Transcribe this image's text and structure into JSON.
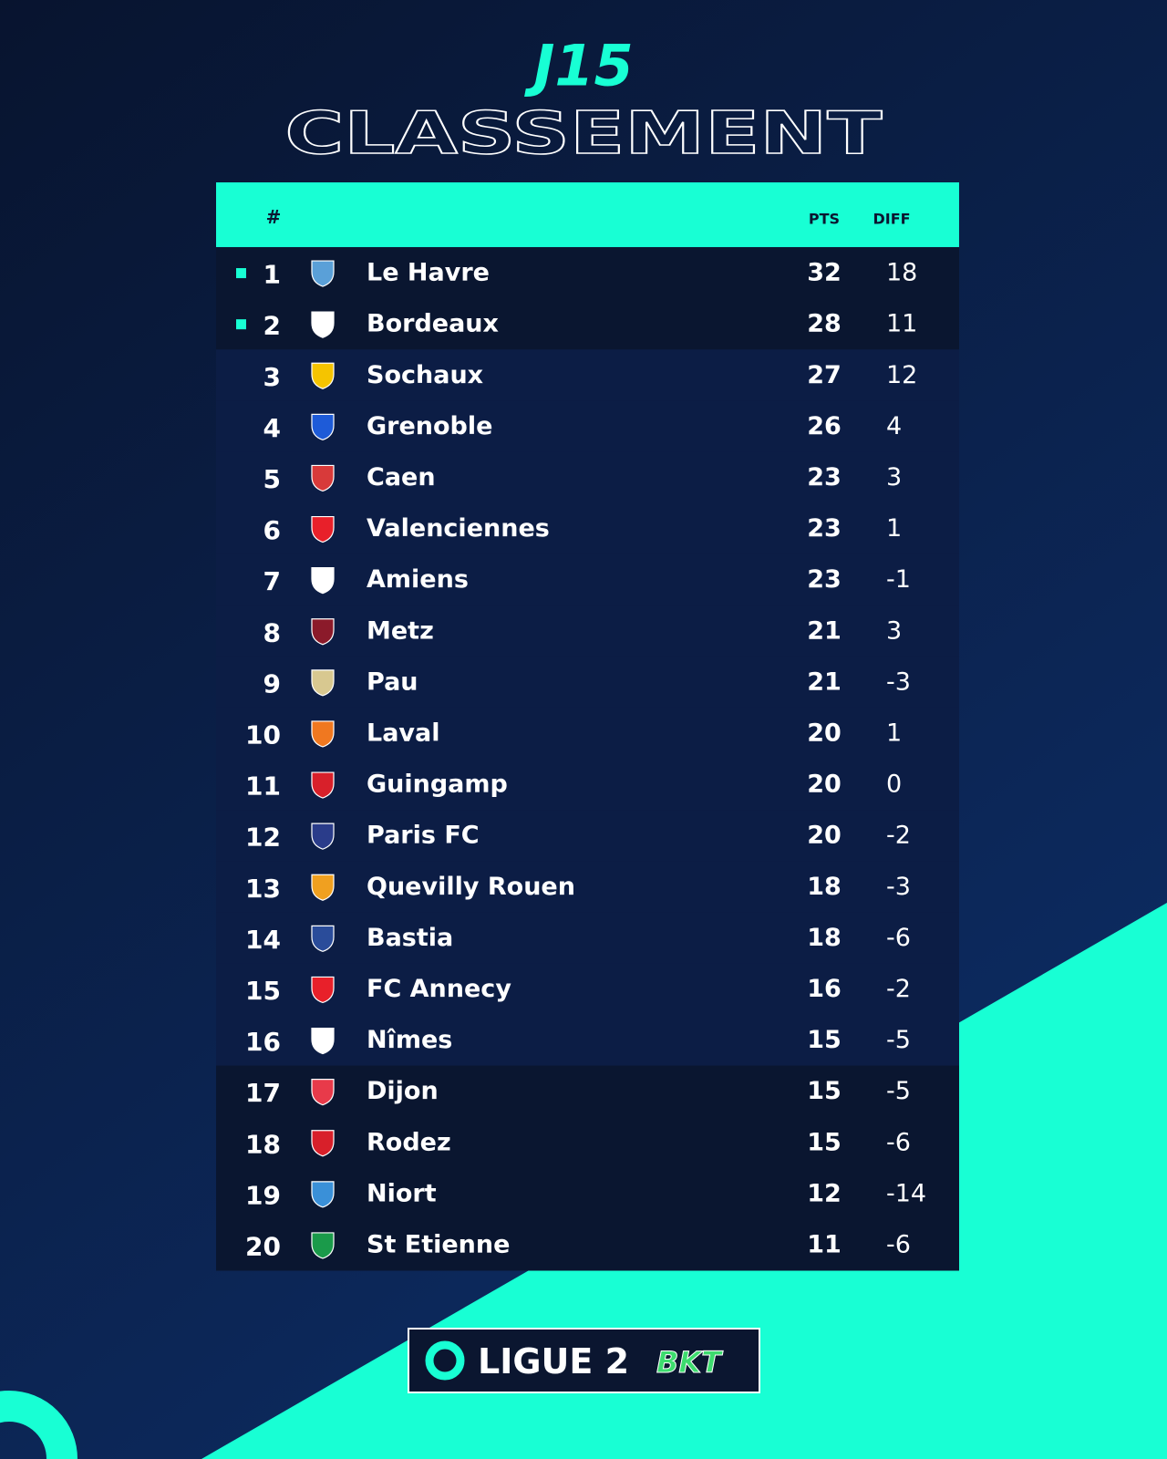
{
  "header": {
    "round": "J15",
    "title": "CLASSEMENT"
  },
  "table": {
    "columns": {
      "rank": "#",
      "pts": "PTS",
      "diff": "DIFF"
    },
    "rows": [
      {
        "rank": 1,
        "team": "Le Havre",
        "pts": 32,
        "diff": 18
      },
      {
        "rank": 2,
        "team": "Bordeaux",
        "pts": 28,
        "diff": 11
      },
      {
        "rank": 3,
        "team": "Sochaux",
        "pts": 27,
        "diff": 12
      },
      {
        "rank": 4,
        "team": "Grenoble",
        "pts": 26,
        "diff": 4
      },
      {
        "rank": 5,
        "team": "Caen",
        "pts": 23,
        "diff": 3
      },
      {
        "rank": 6,
        "team": "Valenciennes",
        "pts": 23,
        "diff": 1
      },
      {
        "rank": 7,
        "team": "Amiens",
        "pts": 23,
        "diff": -1
      },
      {
        "rank": 8,
        "team": "Metz",
        "pts": 21,
        "diff": 3
      },
      {
        "rank": 9,
        "team": "Pau",
        "pts": 21,
        "diff": -3
      },
      {
        "rank": 10,
        "team": "Laval",
        "pts": 20,
        "diff": 1
      },
      {
        "rank": 11,
        "team": "Guingamp",
        "pts": 20,
        "diff": 0
      },
      {
        "rank": 12,
        "team": "Paris FC",
        "pts": 20,
        "diff": -2
      },
      {
        "rank": 13,
        "team": "Quevilly Rouen",
        "pts": 18,
        "diff": -3
      },
      {
        "rank": 14,
        "team": "Bastia",
        "pts": 18,
        "diff": -6
      },
      {
        "rank": 15,
        "team": "FC Annecy",
        "pts": 16,
        "diff": -2
      },
      {
        "rank": 16,
        "team": "Nîmes",
        "pts": 15,
        "diff": -5
      },
      {
        "rank": 17,
        "team": "Dijon",
        "pts": 15,
        "diff": -5
      },
      {
        "rank": 18,
        "team": "Rodez",
        "pts": 15,
        "diff": -6
      },
      {
        "rank": 19,
        "team": "Niort",
        "pts": 12,
        "diff": -14
      },
      {
        "rank": 20,
        "team": "St Etienne",
        "pts": 11,
        "diff": -6
      }
    ]
  },
  "footer": {
    "league": "LIGUE 2",
    "sponsor": "BKT"
  }
}
